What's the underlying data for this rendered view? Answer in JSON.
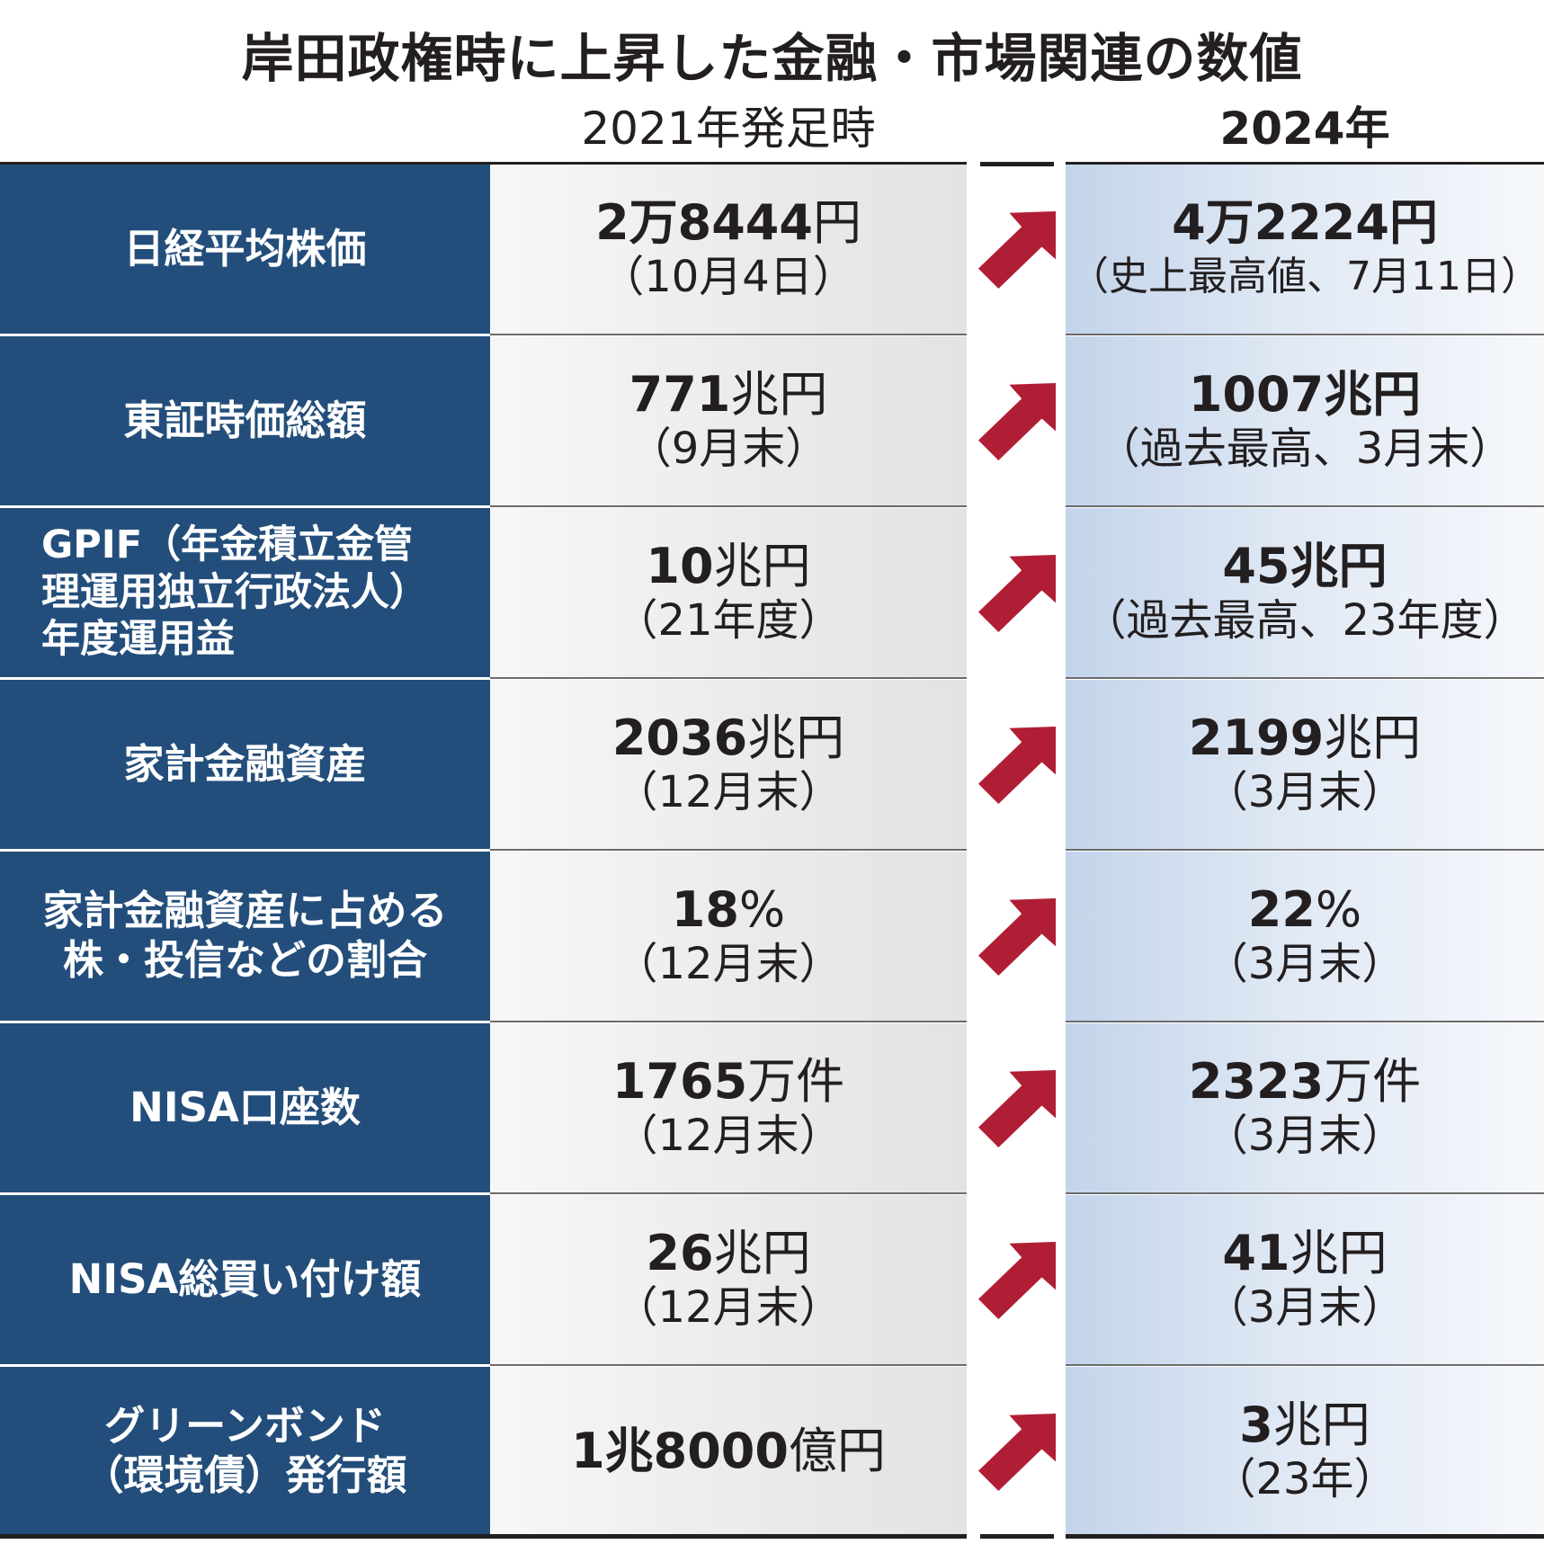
{
  "title": "岸田政権時に上昇した金融・市場関連の数値",
  "columns": {
    "before": "2021年発足時",
    "after": "2024年"
  },
  "arrow_color": "#b01e36",
  "label_bg": "#234e7b",
  "chart_data": {
    "type": "table",
    "title": "岸田政権時に上昇した金融・市場関連の数値",
    "columns": [
      "2021年発足時",
      "2024年"
    ],
    "rows": [
      {
        "label": "日経平均株価",
        "before_num": "2万8444",
        "before_unit": "円",
        "before_note": "（10月4日）",
        "after_num": "4万2224",
        "after_unit": "円",
        "after_note": "（史上最高値、7月11日）"
      },
      {
        "label": "東証時価総額",
        "before_num": "771",
        "before_unit": "兆円",
        "before_note": "（9月末）",
        "after_num": "1007",
        "after_unit": "兆円",
        "after_note": "（過去最高、3月末）"
      },
      {
        "label": "GPIF（年金積立金管\n理運用独立行政法人）\n年度運用益",
        "before_num": "10",
        "before_unit": "兆円",
        "before_note": "（21年度）",
        "after_num": "45",
        "after_unit": "兆円",
        "after_note": "（過去最高、23年度）"
      },
      {
        "label": "家計金融資産",
        "before_num": "2036",
        "before_unit": "兆円",
        "before_note": "（12月末）",
        "after_num": "2199",
        "after_unit": "兆円",
        "after_note": "（3月末）"
      },
      {
        "label": "家計金融資産に占める\n株・投信などの割合",
        "before_num": "18",
        "before_unit": "%",
        "before_note": "（12月末）",
        "after_num": "22",
        "after_unit": "%",
        "after_note": "（3月末）"
      },
      {
        "label": "NISA口座数",
        "before_num": "1765",
        "before_unit": "万件",
        "before_note": "（12月末）",
        "after_num": "2323",
        "after_unit": "万件",
        "after_note": "（3月末）"
      },
      {
        "label": "NISA総買い付け額",
        "before_num": "26",
        "before_unit": "兆円",
        "before_note": "（12月末）",
        "after_num": "41",
        "after_unit": "兆円",
        "after_note": "（3月末）"
      },
      {
        "label": "グリーンボンド\n（環境債）発行額",
        "before_num": "1兆8000",
        "before_unit": "億円",
        "before_note": "",
        "after_num": "3",
        "after_unit": "兆円",
        "after_note": "（23年）"
      }
    ]
  }
}
